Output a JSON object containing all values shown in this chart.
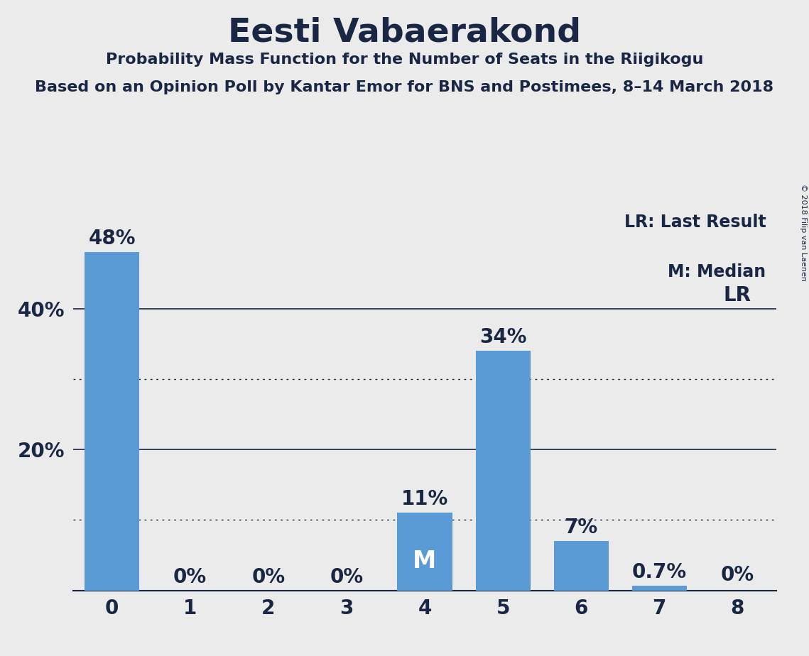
{
  "title": "Eesti Vabaerakond",
  "subtitle1": "Probability Mass Function for the Number of Seats in the Riigikogu",
  "subtitle2": "Based on an Opinion Poll by Kantar Emor for BNS and Postimees, 8–14 March 2018",
  "copyright": "© 2018 Filip van Laenen",
  "legend_lr": "LR: Last Result",
  "legend_m": "M: Median",
  "categories": [
    0,
    1,
    2,
    3,
    4,
    5,
    6,
    7,
    8
  ],
  "values": [
    0.48,
    0.0,
    0.0,
    0.0,
    0.11,
    0.34,
    0.07,
    0.007,
    0.0
  ],
  "labels": [
    "48%",
    "0%",
    "0%",
    "0%",
    "11%",
    "34%",
    "7%",
    "0.7%",
    "0%"
  ],
  "bar_color": "#5B9BD5",
  "median_bar": 4,
  "median_label": "M",
  "lr_bar": 8,
  "lr_label": "LR",
  "background_color": "#EBEBEB",
  "text_color": "#1A2744",
  "ylim": [
    0,
    0.54
  ],
  "solid_grid_ticks": [
    0.2,
    0.4
  ],
  "dotted_grid_ticks": [
    0.1,
    0.3
  ],
  "grid_color": "#1A2744",
  "title_fontsize": 34,
  "subtitle_fontsize": 16,
  "tick_fontsize": 20,
  "annotation_fontsize": 20,
  "legend_fontsize": 17,
  "copyright_fontsize": 8
}
